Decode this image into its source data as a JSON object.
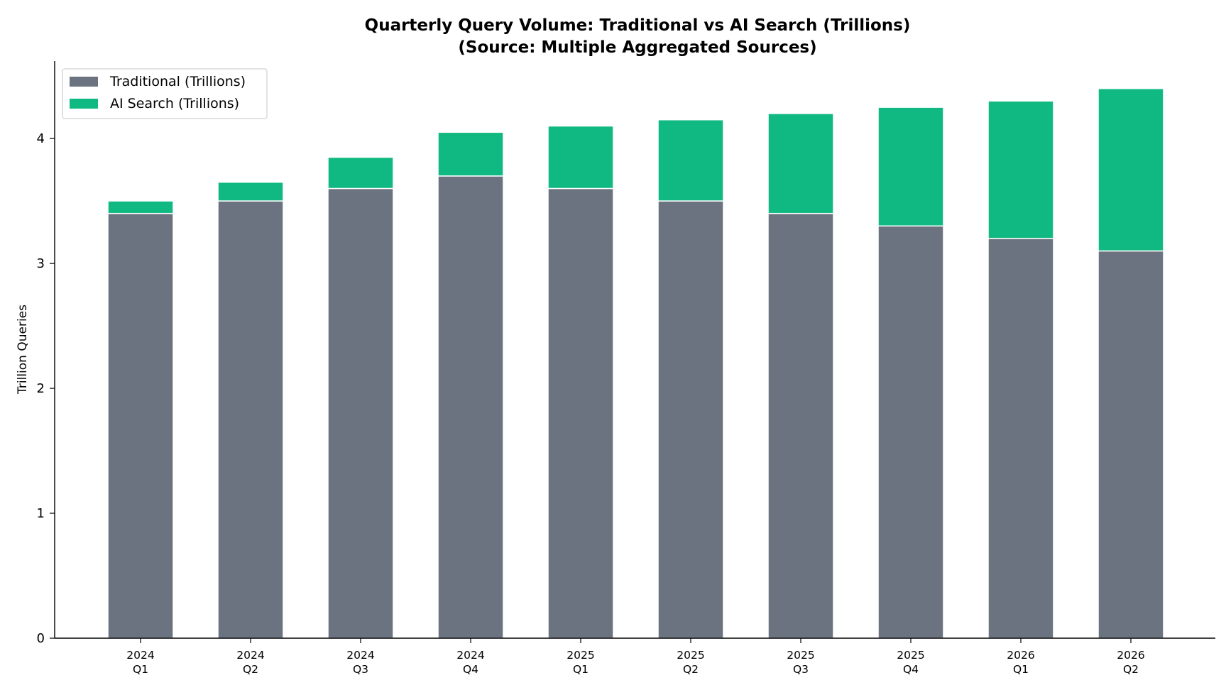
{
  "chart_data": {
    "type": "bar",
    "stacked": true,
    "title": "Quarterly Query Volume: Traditional vs AI Search (Trillions)",
    "subtitle": "(Source: Multiple Aggregated Sources)",
    "xlabel": "",
    "ylabel": "Trillion Queries",
    "ylim": [
      0,
      4.62
    ],
    "yticks": [
      "0",
      "1",
      "2",
      "3",
      "4"
    ],
    "grid": false,
    "legend_position": "top-left",
    "categories": [
      [
        "2024",
        "Q1"
      ],
      [
        "2024",
        "Q2"
      ],
      [
        "2024",
        "Q3"
      ],
      [
        "2024",
        "Q4"
      ],
      [
        "2025",
        "Q1"
      ],
      [
        "2025",
        "Q2"
      ],
      [
        "2025",
        "Q3"
      ],
      [
        "2025",
        "Q4"
      ],
      [
        "2026",
        "Q1"
      ],
      [
        "2026",
        "Q2"
      ]
    ],
    "series": [
      {
        "name": "Traditional (Trillions)",
        "color": "#6b7280",
        "values": [
          3.4,
          3.5,
          3.6,
          3.7,
          3.6,
          3.5,
          3.4,
          3.3,
          3.2,
          3.1
        ]
      },
      {
        "name": "AI Search (Trillions)",
        "color": "#10b981",
        "values": [
          0.1,
          0.15,
          0.25,
          0.35,
          0.5,
          0.65,
          0.8,
          0.95,
          1.1,
          1.3
        ]
      }
    ]
  }
}
